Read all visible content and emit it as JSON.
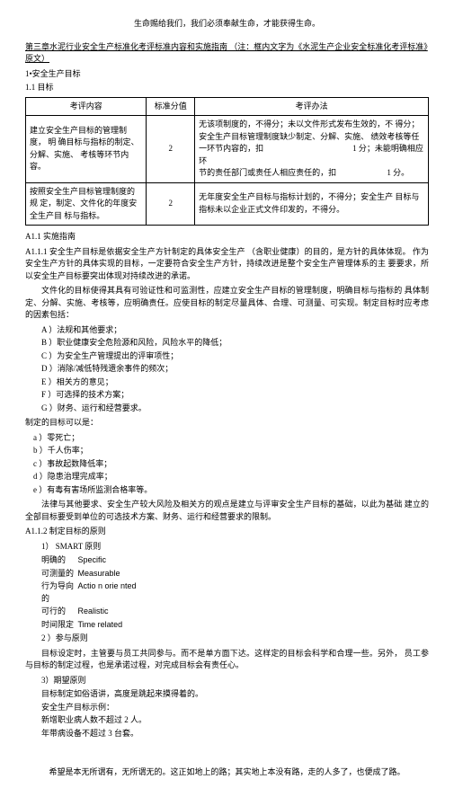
{
  "topQuote": "生命赐给我们，我们必须奉献生命，才能获得生命。",
  "sectionTitle": "第三章水泥行业安全生产标准化考评标准内容和实施指南 （注：框内文字为《水泥生产企业安全标准化考评标准》原文）",
  "h1": "1•安全生产目标",
  "h11": "1.1 目标",
  "table": {
    "headers": [
      "考评内容",
      "标准分值",
      "考评办法"
    ],
    "rows": [
      {
        "c1": "建立安全生产目标的管理制度， 明 确目标与指标的制定、 分解、实施、 考核等环节内容。",
        "c2": "2",
        "c3": "无该项制度的，不得分；未以文件形式发布生效的，不 得分；安全生产目标管理制度缺少制定、分解、实施、 绩效考核等任一环节内容的，扣                                            1 分；未能明确相应环\n节的责任部门或责任人相应责任的，扣                         1 分。"
      },
      {
        "c1": "按照安全生产目标管理制度的规 定，制定、文件化的年度安全生产目 标与指标。",
        "c2": "2",
        "c3": "无年度安全生产目标与指标计划的，不得分；安全生产 目标与指标未以企业正式文件印发的，不得分。"
      }
    ]
  },
  "a11": "A1.1 实施指南",
  "a111": "A1.1.1 安全生产目标是依据安全生产方针制定的具体安全生产 （含职业健康）的目的，是方针的具体体现。 作为安全生产方针的具体实现的目标，一定要符合安全生产方针，持续改进是整个安全生产管理体系的主 要要求，所以安全生产目标要突出体现对持续改进的承诺。",
  "a111p2": "文件化的目标使得其具有可验证性和可监测性，应建立安全生产目标的管理制度，明确目标与指标的 具体制定、分解、实施、考核等，应明确责任。应使目标的制定尽量具体、合理、可测量、可实现。制定目标时应考虑的因素包括：",
  "listA": [
    "A ）法规和其他要求；",
    "B ）职业健康安全危险源和风险，风险水平的降低；",
    "C ）为安全生产管理提出的评审项性；",
    "D ）消除/减低特残遗余事件的频次；",
    "E ）相关方的意见；",
    "F ）可选择的技术方案；",
    "G ）财务、运行和经营要求。"
  ],
  "listALabel": "制定的目标可以是：",
  "listB": [
    "a ）零死亡；",
    "b ）千人伤率；",
    "c ）事故起数降低率；",
    "d ）隐患治理完成率；",
    "e ）有毒有害场所监测合格率等。"
  ],
  "a111p3": "法律与其他要求、安全生产较大风险及相关方的观点是建立与评审安全生产目标的基础，以此为基础 建立的全部目标要受到单位的可选技术方案、财务、运行和经营要求的限制。",
  "a112": "A1.1.2 制定目标的原则",
  "smartTitle": "1） SMART 原则",
  "smart": [
    {
      "label": "明确的",
      "val": "Specific"
    },
    {
      "label": "可测量的",
      "val": "Measurable"
    },
    {
      "label": "行为导向的",
      "val": "Actio n orie nted"
    },
    {
      "label": "可行的",
      "val": "Realistic"
    },
    {
      "label": "时间限定",
      "val": "Time related"
    }
  ],
  "item2": "2 ）参与原则",
  "item2p": "目标设定时，主管要与员工共同参与。而不是单方面下达。这样定的目标会科学和合理一些。另外， 员工参与目标的制定过程，也是承诺过程，对完成目标会有责任心。",
  "item3": "3）期望原则",
  "item3lines": [
    "目标制定如俗语讲，高度是跳起来摸得着的。",
    "安全生产目标示例：",
    "新增职业病人数不超过       2 人。",
    "年带病设备不超过 3 台套。"
  ],
  "bottomQuote": "希望是本无所谓有，无所谓无的。这正如地上的路；其实地上本没有路，走的人多了，也便成了路。"
}
